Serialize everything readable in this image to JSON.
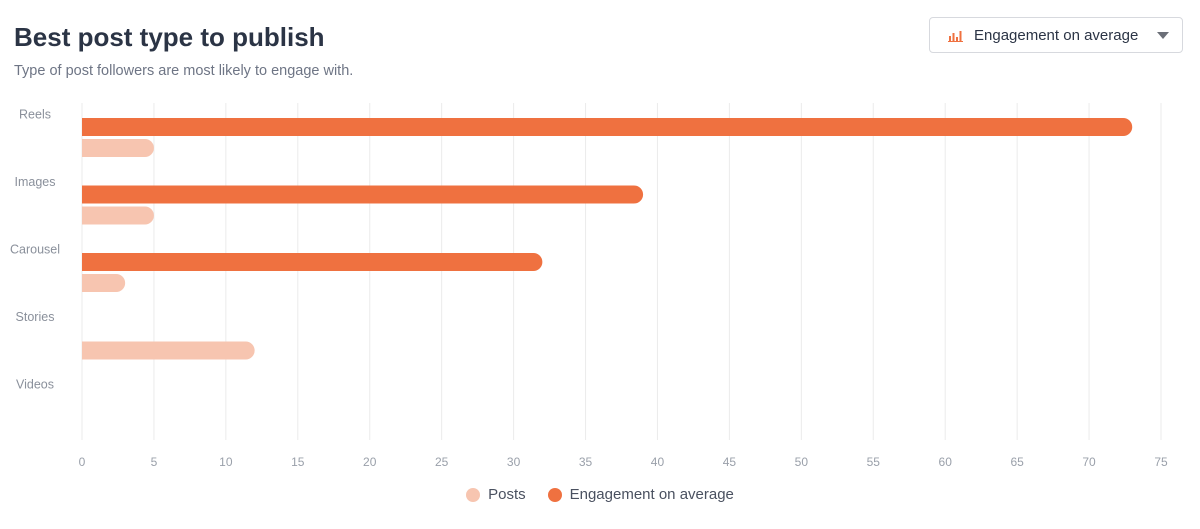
{
  "header": {
    "title": "Best post type to publish",
    "subtitle": "Type of post followers are most likely to engage with."
  },
  "metric_selector": {
    "icon": "bar-chart-icon",
    "selected": "Engagement on average"
  },
  "colors": {
    "engagement": "#ef7140",
    "posts": "#f7c5b0",
    "grid": "#ebebeb",
    "axis_text": "#9aa0aa",
    "category_text": "#8a909b"
  },
  "chart_data": {
    "type": "bar",
    "orientation": "horizontal",
    "categories": [
      "Reels",
      "Images",
      "Carousel",
      "Stories",
      "Videos"
    ],
    "series": [
      {
        "name": "Engagement on average",
        "values": [
          73,
          39,
          32,
          0,
          0
        ]
      },
      {
        "name": "Posts",
        "values": [
          5,
          5,
          3,
          12,
          0
        ]
      }
    ],
    "xlim": [
      0,
      75
    ],
    "x_ticks": [
      0,
      5,
      10,
      15,
      20,
      25,
      30,
      35,
      40,
      45,
      50,
      55,
      60,
      65,
      70,
      75
    ],
    "grid": "vertical",
    "legend_position": "bottom-center",
    "legend": [
      "Posts",
      "Engagement on average"
    ]
  }
}
